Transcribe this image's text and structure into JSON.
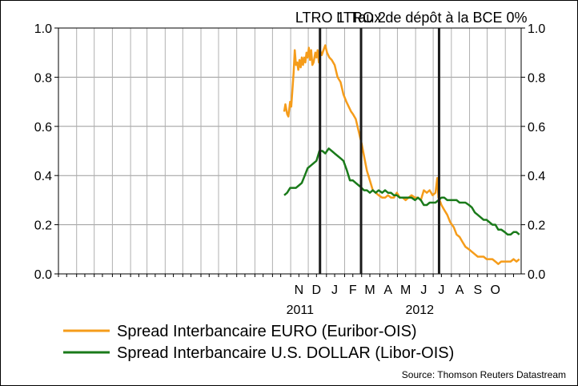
{
  "chart_data": {
    "type": "line",
    "title": "",
    "xlabel": "",
    "ylabel": "",
    "ylim": [
      0,
      1.0
    ],
    "y_ticks": [
      "0.0",
      "0.2",
      "0.4",
      "0.6",
      "0.8",
      "1.0"
    ],
    "y2_ticks": [
      "0.0",
      "0.2",
      "0.4",
      "0.6",
      "0.8",
      "1.0"
    ],
    "grid": true,
    "x_start": "2010-10-01",
    "x_end": "2012-11-28",
    "month_labels": [
      {
        "label": "N",
        "date": "2011-11-15"
      },
      {
        "label": "D",
        "date": "2011-12-15"
      },
      {
        "label": "J",
        "date": "2012-01-15"
      },
      {
        "label": "F",
        "date": "2012-02-15"
      },
      {
        "label": "M",
        "date": "2012-03-15"
      },
      {
        "label": "A",
        "date": "2012-04-15"
      },
      {
        "label": "M",
        "date": "2012-05-15"
      },
      {
        "label": "J",
        "date": "2012-06-15"
      },
      {
        "label": "J",
        "date": "2012-07-15"
      },
      {
        "label": "A",
        "date": "2012-08-15"
      },
      {
        "label": "S",
        "date": "2012-09-15"
      },
      {
        "label": "O",
        "date": "2012-10-15"
      }
    ],
    "year_labels": [
      {
        "label": "2011",
        "date": "2011-11-17"
      },
      {
        "label": "2012",
        "date": "2012-06-08"
      }
    ],
    "events": [
      {
        "label": "LTRO 1",
        "date": "2011-12-21"
      },
      {
        "label": "LTRO 2",
        "date": "2012-02-29"
      },
      {
        "label": "Taux de dépôt à la BCE 0%",
        "date": "2012-07-11"
      }
    ],
    "colors": {
      "euro": "#f59c1a",
      "usd": "#1a7a1a"
    },
    "series": [
      {
        "name": "Spread Interbancaire EURO (Euribor-OIS)",
        "color": "#f59c1a",
        "x": [
          "2011-10-21",
          "2011-10-23",
          "2011-10-26",
          "2011-10-28",
          "2011-10-31",
          "2011-11-02",
          "2011-11-04",
          "2011-11-06",
          "2011-11-08",
          "2011-11-10",
          "2011-11-12",
          "2011-11-14",
          "2011-11-16",
          "2011-11-18",
          "2011-11-20",
          "2011-11-22",
          "2011-11-24",
          "2011-11-26",
          "2011-11-28",
          "2011-11-30",
          "2011-12-02",
          "2011-12-04",
          "2011-12-06",
          "2011-12-08",
          "2011-12-10",
          "2011-12-13",
          "2011-12-15",
          "2011-12-17",
          "2011-12-19",
          "2011-12-21",
          "2011-12-24",
          "2011-12-27",
          "2011-12-30",
          "2012-01-02",
          "2012-01-06",
          "2012-01-10",
          "2012-01-15",
          "2012-01-20",
          "2012-01-25",
          "2012-01-30",
          "2012-02-04",
          "2012-02-08",
          "2012-02-12",
          "2012-02-15",
          "2012-02-20",
          "2012-02-24",
          "2012-02-27",
          "2012-03-01",
          "2012-03-05",
          "2012-03-10",
          "2012-03-15",
          "2012-03-20",
          "2012-03-25",
          "2012-03-30",
          "2012-04-05",
          "2012-04-10",
          "2012-04-15",
          "2012-04-20",
          "2012-04-25",
          "2012-04-30",
          "2012-05-05",
          "2012-05-10",
          "2012-05-15",
          "2012-05-20",
          "2012-05-25",
          "2012-05-31",
          "2012-06-05",
          "2012-06-10",
          "2012-06-15",
          "2012-06-20",
          "2012-06-25",
          "2012-06-30",
          "2012-07-05",
          "2012-07-08",
          "2012-07-10",
          "2012-07-12",
          "2012-07-15",
          "2012-07-20",
          "2012-07-25",
          "2012-07-30",
          "2012-08-05",
          "2012-08-10",
          "2012-08-15",
          "2012-08-20",
          "2012-08-25",
          "2012-08-31",
          "2012-09-05",
          "2012-09-10",
          "2012-09-15",
          "2012-09-20",
          "2012-09-25",
          "2012-09-30",
          "2012-10-05",
          "2012-10-10",
          "2012-10-15",
          "2012-10-20",
          "2012-10-25",
          "2012-10-31",
          "2012-11-05",
          "2012-11-10",
          "2012-11-15",
          "2012-11-20",
          "2012-11-25"
        ],
        "values": [
          0.66,
          0.69,
          0.65,
          0.64,
          0.7,
          0.68,
          0.75,
          0.82,
          0.91,
          0.85,
          0.86,
          0.83,
          0.87,
          0.84,
          0.88,
          0.85,
          0.88,
          0.86,
          0.9,
          0.88,
          0.92,
          0.87,
          0.91,
          0.85,
          0.86,
          0.9,
          0.88,
          0.91,
          0.86,
          0.91,
          0.89,
          0.91,
          0.93,
          0.9,
          0.88,
          0.87,
          0.85,
          0.8,
          0.78,
          0.73,
          0.7,
          0.68,
          0.66,
          0.65,
          0.63,
          0.59,
          0.56,
          0.53,
          0.48,
          0.42,
          0.38,
          0.34,
          0.33,
          0.32,
          0.31,
          0.31,
          0.32,
          0.31,
          0.31,
          0.33,
          0.31,
          0.31,
          0.3,
          0.31,
          0.32,
          0.31,
          0.31,
          0.3,
          0.34,
          0.33,
          0.34,
          0.32,
          0.33,
          0.39,
          0.31,
          0.3,
          0.28,
          0.26,
          0.24,
          0.21,
          0.19,
          0.16,
          0.15,
          0.13,
          0.11,
          0.1,
          0.09,
          0.08,
          0.07,
          0.07,
          0.07,
          0.06,
          0.06,
          0.06,
          0.05,
          0.04,
          0.05,
          0.05,
          0.05,
          0.05,
          0.06,
          0.05,
          0.06
        ]
      },
      {
        "name": "Spread Interbancaire U.S. DOLLAR (Libor-OIS)",
        "color": "#1a7a1a",
        "x": [
          "2011-10-21",
          "2011-10-26",
          "2011-10-31",
          "2011-11-05",
          "2011-11-10",
          "2011-11-15",
          "2011-11-20",
          "2011-11-25",
          "2011-11-30",
          "2011-12-05",
          "2011-12-10",
          "2011-12-15",
          "2011-12-20",
          "2011-12-25",
          "2011-12-30",
          "2012-01-05",
          "2012-01-10",
          "2012-01-15",
          "2012-01-20",
          "2012-01-25",
          "2012-01-30",
          "2012-02-05",
          "2012-02-10",
          "2012-02-15",
          "2012-02-20",
          "2012-02-25",
          "2012-03-01",
          "2012-03-05",
          "2012-03-10",
          "2012-03-15",
          "2012-03-20",
          "2012-03-25",
          "2012-03-30",
          "2012-04-05",
          "2012-04-10",
          "2012-04-15",
          "2012-04-20",
          "2012-04-25",
          "2012-04-30",
          "2012-05-05",
          "2012-05-10",
          "2012-05-15",
          "2012-05-20",
          "2012-05-25",
          "2012-05-31",
          "2012-06-05",
          "2012-06-10",
          "2012-06-15",
          "2012-06-20",
          "2012-06-25",
          "2012-06-30",
          "2012-07-05",
          "2012-07-10",
          "2012-07-15",
          "2012-07-20",
          "2012-07-25",
          "2012-07-30",
          "2012-08-05",
          "2012-08-10",
          "2012-08-15",
          "2012-08-20",
          "2012-08-25",
          "2012-08-31",
          "2012-09-05",
          "2012-09-10",
          "2012-09-15",
          "2012-09-20",
          "2012-09-25",
          "2012-09-30",
          "2012-10-05",
          "2012-10-10",
          "2012-10-15",
          "2012-10-20",
          "2012-10-25",
          "2012-10-31",
          "2012-11-05",
          "2012-11-10",
          "2012-11-15",
          "2012-11-20",
          "2012-11-25"
        ],
        "values": [
          0.32,
          0.33,
          0.35,
          0.35,
          0.35,
          0.36,
          0.37,
          0.4,
          0.43,
          0.44,
          0.45,
          0.46,
          0.5,
          0.5,
          0.49,
          0.51,
          0.5,
          0.49,
          0.48,
          0.47,
          0.46,
          0.42,
          0.38,
          0.38,
          0.37,
          0.36,
          0.35,
          0.34,
          0.34,
          0.33,
          0.34,
          0.33,
          0.34,
          0.33,
          0.34,
          0.33,
          0.33,
          0.32,
          0.32,
          0.31,
          0.31,
          0.31,
          0.31,
          0.31,
          0.3,
          0.31,
          0.3,
          0.28,
          0.28,
          0.29,
          0.29,
          0.29,
          0.3,
          0.31,
          0.31,
          0.3,
          0.3,
          0.3,
          0.3,
          0.29,
          0.29,
          0.29,
          0.28,
          0.27,
          0.25,
          0.24,
          0.23,
          0.22,
          0.22,
          0.21,
          0.2,
          0.2,
          0.18,
          0.18,
          0.17,
          0.16,
          0.16,
          0.17,
          0.17,
          0.16
        ]
      }
    ],
    "legend": {
      "placement": "bottom",
      "items": [
        {
          "label": "Spread Interbancaire EURO (Euribor-OIS)",
          "color": "#f59c1a"
        },
        {
          "label": "Spread Interbancaire U.S. DOLLAR (Libor-OIS)",
          "color": "#1a7a1a"
        }
      ]
    },
    "source": "Source: Thomson Reuters Datastream"
  }
}
